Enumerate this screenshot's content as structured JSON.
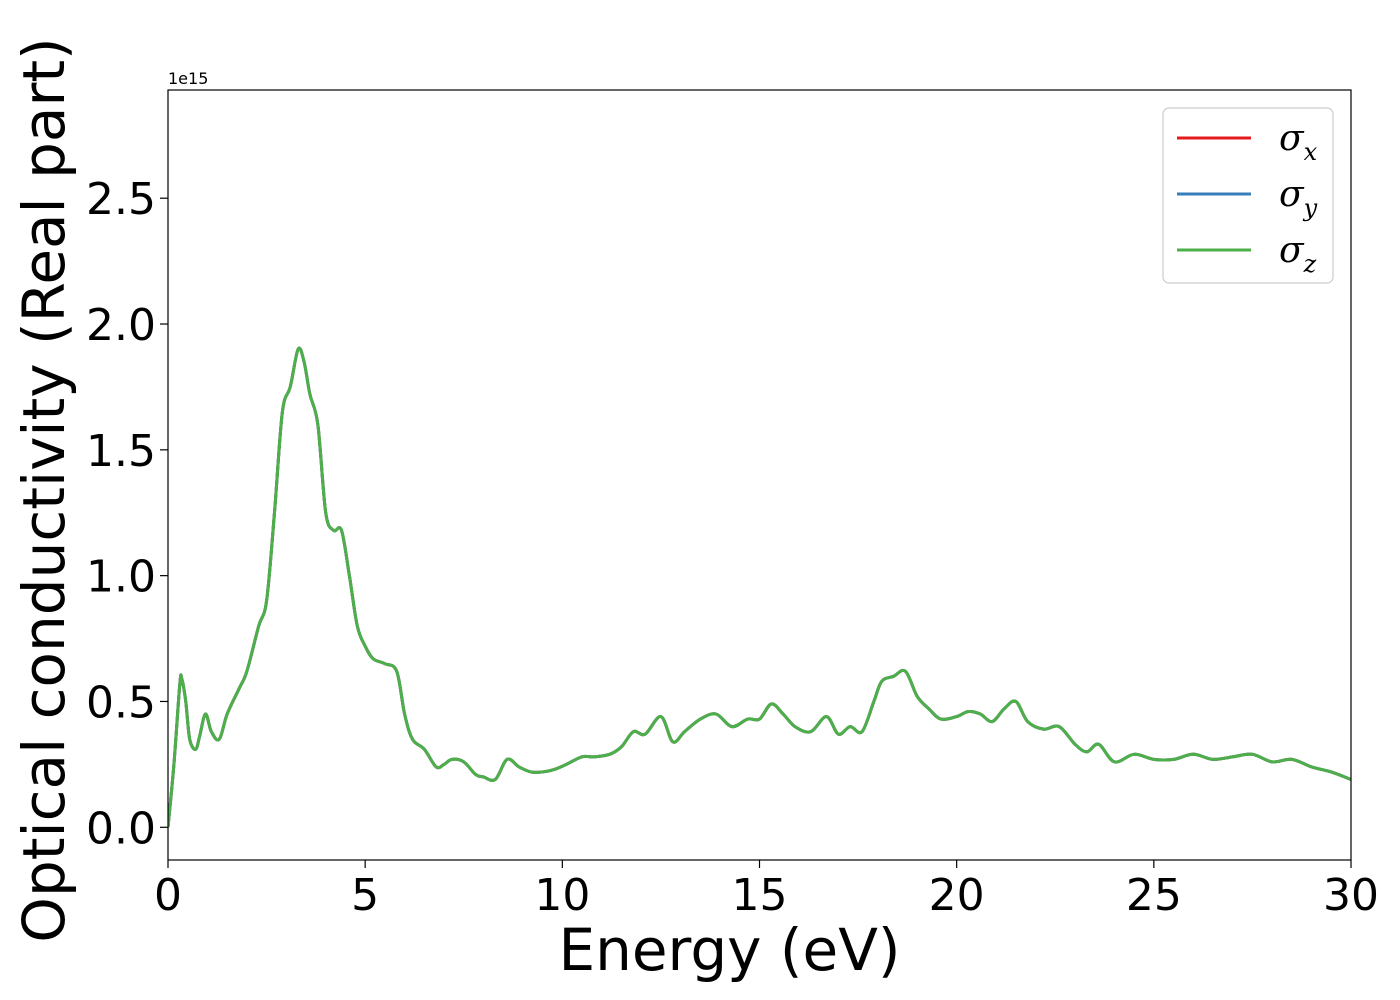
{
  "chart_data": {
    "type": "line",
    "xlabel": "Energy (eV)",
    "ylabel": "Optical conductivity (Real part)",
    "y_offset_label": "1e15",
    "y_scale_factor": 1000000000000000.0,
    "xlim": [
      0,
      30
    ],
    "ylim": [
      -0.13,
      2.93
    ],
    "xticks": [
      0,
      5,
      10,
      15,
      20,
      25,
      30
    ],
    "xtick_labels": [
      "0",
      "5",
      "10",
      "15",
      "20",
      "25",
      "30"
    ],
    "yticks": [
      0.0,
      0.5,
      1.0,
      1.5,
      2.0,
      2.5
    ],
    "ytick_labels": [
      "0.0",
      "0.5",
      "1.0",
      "1.5",
      "2.0",
      "2.5"
    ],
    "grid": false,
    "legend_position": "top-right",
    "x": [
      0.0,
      0.15,
      0.3,
      0.35,
      0.45,
      0.55,
      0.7,
      0.8,
      0.95,
      1.1,
      1.3,
      1.5,
      1.8,
      2.0,
      2.3,
      2.5,
      2.7,
      2.9,
      3.1,
      3.3,
      3.45,
      3.6,
      3.8,
      4.0,
      4.2,
      4.4,
      4.6,
      4.8,
      5.0,
      5.2,
      5.5,
      5.8,
      6.0,
      6.2,
      6.5,
      6.8,
      7.0,
      7.2,
      7.5,
      7.8,
      8.0,
      8.3,
      8.6,
      8.9,
      9.2,
      9.5,
      9.8,
      10.1,
      10.5,
      10.8,
      11.2,
      11.5,
      11.8,
      12.1,
      12.5,
      12.8,
      13.1,
      13.5,
      13.9,
      14.3,
      14.7,
      15.0,
      15.3,
      15.6,
      15.9,
      16.3,
      16.7,
      17.0,
      17.3,
      17.6,
      17.9,
      18.1,
      18.4,
      18.7,
      19.0,
      19.3,
      19.6,
      20.0,
      20.3,
      20.6,
      20.9,
      21.2,
      21.5,
      21.8,
      22.2,
      22.6,
      23.0,
      23.3,
      23.6,
      24.0,
      24.5,
      25.0,
      25.5,
      26.0,
      26.5,
      27.0,
      27.5,
      28.0,
      28.5,
      29.0,
      29.5,
      30.0
    ],
    "series": [
      {
        "name": "σ_x",
        "color": "#e41a1c",
        "values": [
          0.0,
          0.25,
          0.57,
          0.59,
          0.5,
          0.35,
          0.31,
          0.36,
          0.45,
          0.38,
          0.35,
          0.45,
          0.55,
          0.62,
          0.8,
          0.9,
          1.25,
          1.65,
          1.75,
          1.9,
          1.85,
          1.72,
          1.6,
          1.25,
          1.18,
          1.18,
          1.0,
          0.8,
          0.72,
          0.67,
          0.65,
          0.62,
          0.45,
          0.35,
          0.31,
          0.24,
          0.25,
          0.27,
          0.26,
          0.21,
          0.2,
          0.19,
          0.27,
          0.24,
          0.22,
          0.22,
          0.23,
          0.25,
          0.28,
          0.28,
          0.29,
          0.32,
          0.38,
          0.37,
          0.44,
          0.34,
          0.38,
          0.43,
          0.45,
          0.4,
          0.43,
          0.43,
          0.49,
          0.45,
          0.4,
          0.38,
          0.44,
          0.37,
          0.4,
          0.38,
          0.5,
          0.58,
          0.6,
          0.62,
          0.52,
          0.47,
          0.43,
          0.44,
          0.46,
          0.45,
          0.42,
          0.47,
          0.5,
          0.42,
          0.39,
          0.4,
          0.33,
          0.3,
          0.33,
          0.26,
          0.29,
          0.27,
          0.27,
          0.29,
          0.27,
          0.28,
          0.29,
          0.26,
          0.27,
          0.24,
          0.22,
          0.19
        ]
      },
      {
        "name": "σ_y",
        "color": "#377eb8",
        "values": [
          0.0,
          0.25,
          0.57,
          0.59,
          0.5,
          0.35,
          0.31,
          0.36,
          0.45,
          0.38,
          0.35,
          0.45,
          0.55,
          0.62,
          0.8,
          0.9,
          1.25,
          1.65,
          1.75,
          1.9,
          1.85,
          1.72,
          1.6,
          1.25,
          1.18,
          1.18,
          1.0,
          0.8,
          0.72,
          0.67,
          0.65,
          0.62,
          0.45,
          0.35,
          0.31,
          0.24,
          0.25,
          0.27,
          0.26,
          0.21,
          0.2,
          0.19,
          0.27,
          0.24,
          0.22,
          0.22,
          0.23,
          0.25,
          0.28,
          0.28,
          0.29,
          0.32,
          0.38,
          0.37,
          0.44,
          0.34,
          0.38,
          0.43,
          0.45,
          0.4,
          0.43,
          0.43,
          0.49,
          0.45,
          0.4,
          0.38,
          0.44,
          0.37,
          0.4,
          0.38,
          0.5,
          0.58,
          0.6,
          0.62,
          0.52,
          0.47,
          0.43,
          0.44,
          0.46,
          0.45,
          0.42,
          0.47,
          0.5,
          0.42,
          0.39,
          0.4,
          0.33,
          0.3,
          0.33,
          0.26,
          0.29,
          0.27,
          0.27,
          0.29,
          0.27,
          0.28,
          0.29,
          0.26,
          0.27,
          0.24,
          0.22,
          0.19
        ]
      },
      {
        "name": "σ_z",
        "color": "#4daf4a",
        "values": [
          0.0,
          0.25,
          0.57,
          0.59,
          0.5,
          0.35,
          0.31,
          0.36,
          0.45,
          0.38,
          0.35,
          0.45,
          0.55,
          0.62,
          0.8,
          0.9,
          1.25,
          1.65,
          1.75,
          1.9,
          1.85,
          1.72,
          1.6,
          1.25,
          1.18,
          1.18,
          1.0,
          0.8,
          0.72,
          0.67,
          0.65,
          0.62,
          0.45,
          0.35,
          0.31,
          0.24,
          0.25,
          0.27,
          0.26,
          0.21,
          0.2,
          0.19,
          0.27,
          0.24,
          0.22,
          0.22,
          0.23,
          0.25,
          0.28,
          0.28,
          0.29,
          0.32,
          0.38,
          0.37,
          0.44,
          0.34,
          0.38,
          0.43,
          0.45,
          0.4,
          0.43,
          0.43,
          0.49,
          0.45,
          0.4,
          0.38,
          0.44,
          0.37,
          0.4,
          0.38,
          0.5,
          0.58,
          0.6,
          0.62,
          0.52,
          0.47,
          0.43,
          0.44,
          0.46,
          0.45,
          0.42,
          0.47,
          0.5,
          0.42,
          0.39,
          0.4,
          0.33,
          0.3,
          0.33,
          0.26,
          0.29,
          0.27,
          0.27,
          0.29,
          0.27,
          0.28,
          0.29,
          0.26,
          0.27,
          0.24,
          0.22,
          0.19
        ]
      }
    ],
    "legend": [
      {
        "symbol": "σ",
        "subscript": "x",
        "color": "#e41a1c"
      },
      {
        "symbol": "σ",
        "subscript": "y",
        "color": "#377eb8"
      },
      {
        "symbol": "σ",
        "subscript": "z",
        "color": "#4daf4a"
      }
    ]
  }
}
